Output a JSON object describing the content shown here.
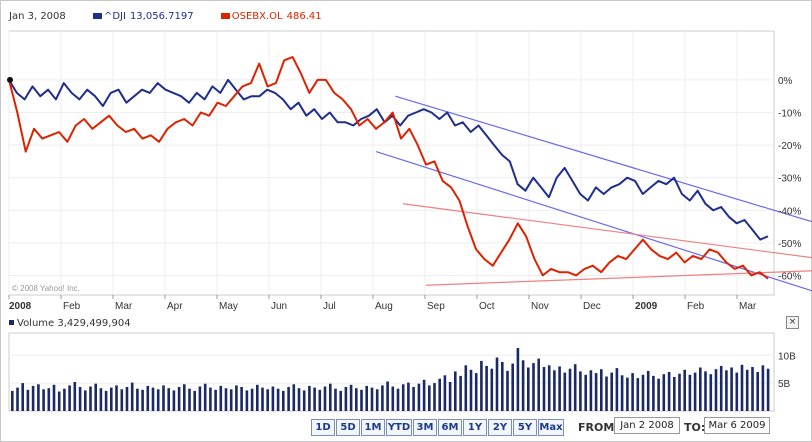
{
  "legend": {
    "date": "Jan 3, 2008",
    "series1_name": "^DJI",
    "series1_value": "13,056.7197",
    "series2_name": "OSEBX.OL",
    "series2_value": "486.41",
    "series1_color": "#1f2e8c",
    "series2_color": "#dd2200"
  },
  "copyright": "© 2008 Yahoo! Inc.",
  "volume": {
    "label": "Volume",
    "value": "3,429,499,904",
    "collapse": "×",
    "color": "#1a2a66"
  },
  "trendline_colors": {
    "blue": "#6a6af0",
    "red": "#f08080"
  },
  "chart_data": [
    {
      "type": "line",
      "x_ticks": [
        "2008",
        "Feb",
        "Mar",
        "Apr",
        "May",
        "Jun",
        "Jul",
        "Aug",
        "Sep",
        "Oct",
        "Nov",
        "Dec",
        "2009",
        "Feb",
        "Mar"
      ],
      "y_ticks": [
        "0%",
        "-10%",
        "-20%",
        "-30%",
        "-40%",
        "-50%",
        "-60%"
      ],
      "ylim": [
        -66,
        15
      ],
      "series": [
        {
          "name": "^DJI",
          "values": [
            0,
            -4,
            -6,
            -2,
            -5,
            -3,
            -6,
            -1,
            -4,
            -6,
            -3,
            -5,
            -8,
            -4,
            -3,
            -7,
            -5,
            -3,
            -4,
            -1,
            -3,
            -4,
            -5,
            -7,
            -4,
            -6,
            -2,
            -4,
            0,
            -3,
            -6,
            -5,
            -5,
            -3,
            -4,
            -6,
            -9,
            -7,
            -11,
            -9,
            -12,
            -10,
            -13,
            -13,
            -14,
            -12,
            -11,
            -9,
            -13,
            -11,
            -14,
            -11,
            -10,
            -9,
            -10,
            -12,
            -10,
            -14,
            -13,
            -16,
            -14,
            -17,
            -20,
            -23,
            -25,
            -32,
            -34,
            -30,
            -33,
            -36,
            -30,
            -27,
            -31,
            -35,
            -37,
            -33,
            -35,
            -33,
            -32,
            -30,
            -31,
            -35,
            -33,
            -31,
            -32,
            -30,
            -35,
            -37,
            -34,
            -38,
            -40,
            -39,
            -42,
            -44,
            -43,
            -46,
            -49,
            -48
          ],
          "color": "#1f2e8c"
        },
        {
          "name": "OSEBX.OL",
          "values": [
            0,
            -10,
            -22,
            -15,
            -18,
            -17,
            -16,
            -19,
            -14,
            -12,
            -15,
            -13,
            -11,
            -14,
            -16,
            -15,
            -18,
            -17,
            -19,
            -15,
            -13,
            -12,
            -14,
            -10,
            -11,
            -7,
            -8,
            -5,
            -2,
            -1,
            5,
            -2,
            -1,
            6,
            7,
            2,
            -4,
            0,
            0,
            -4,
            -6,
            -9,
            -14,
            -12,
            -15,
            -13,
            -10,
            -18,
            -15,
            -20,
            -26,
            -25,
            -31,
            -33,
            -37,
            -45,
            -52,
            -55,
            -57,
            -53,
            -49,
            -44,
            -48,
            -55,
            -60,
            -58,
            -59,
            -59,
            -60,
            -58,
            -57,
            -59,
            -56,
            -54,
            -55,
            -52,
            -49,
            -52,
            -54,
            -55,
            -53,
            -56,
            -54,
            -55,
            -52,
            -53,
            -56,
            -58,
            -57,
            -60,
            -59,
            -61
          ],
          "color": "#dd2200"
        }
      ],
      "trendlines": [
        {
          "color": "blue",
          "from": [
            0.505,
            -5
          ],
          "to": [
            1.0,
            -40
          ]
        },
        {
          "color": "blue",
          "from": [
            0.48,
            -22
          ],
          "to": [
            1.0,
            -61
          ]
        },
        {
          "color": "red",
          "from": [
            0.515,
            -38
          ],
          "to": [
            1.0,
            -53
          ]
        },
        {
          "color": "red",
          "from": [
            0.545,
            -63
          ],
          "to": [
            1.0,
            -59
          ]
        }
      ]
    },
    {
      "type": "bar",
      "name": "Volume",
      "y_ticks": [
        "10B",
        "5B"
      ],
      "ylim": [
        0,
        14
      ],
      "values": [
        3.6,
        4.2,
        5.0,
        3.8,
        4.5,
        4.8,
        3.9,
        4.1,
        4.7,
        3.5,
        4.0,
        4.6,
        5.2,
        4.3,
        3.7,
        4.4,
        4.9,
        4.1,
        3.6,
        4.2,
        4.6,
        3.9,
        4.3,
        5.1,
        4.0,
        3.8,
        4.5,
        4.2,
        3.9,
        4.6,
        4.1,
        3.7,
        4.3,
        4.8,
        4.0,
        3.6,
        4.4,
        4.9,
        4.2,
        3.8,
        4.5,
        4.1,
        3.9,
        4.6,
        4.3,
        3.7,
        4.0,
        4.7,
        4.2,
        3.9,
        4.4,
        4.0,
        3.6,
        4.3,
        4.8,
        4.1,
        3.7,
        4.5,
        4.2,
        3.8,
        4.4,
        4.9,
        4.0,
        3.6,
        4.3,
        4.7,
        4.1,
        3.8,
        4.5,
        4.2,
        3.9,
        4.6,
        5.3,
        4.4,
        4.0,
        4.8,
        5.1,
        4.3,
        4.9,
        5.6,
        4.6,
        5.0,
        5.8,
        6.4,
        5.2,
        7.1,
        6.3,
        8.2,
        7.4,
        6.8,
        9.0,
        8.1,
        7.6,
        9.6,
        8.8,
        7.2,
        8.5,
        11.3,
        9.1,
        7.8,
        8.6,
        9.4,
        7.9,
        8.2,
        7.3,
        8.0,
        6.9,
        7.6,
        8.4,
        7.1,
        6.5,
        7.3,
        6.8,
        7.5,
        6.2,
        6.9,
        7.7,
        6.4,
        6.0,
        6.8,
        5.9,
        6.5,
        7.2,
        6.3,
        5.8,
        6.6,
        7.0,
        6.1,
        6.7,
        7.4,
        6.5,
        6.9,
        7.8,
        7.1,
        6.6,
        7.5,
        8.1,
        7.3,
        7.8,
        6.9,
        8.3,
        7.4,
        7.9,
        7.0,
        8.2,
        7.6
      ]
    }
  ],
  "controls": {
    "ranges": [
      "1D",
      "5D",
      "1M",
      "YTD",
      "3M",
      "6M",
      "1Y",
      "2Y",
      "5Y",
      "Max"
    ],
    "from_label": "FROM:",
    "from_value": "Jan 2 2008",
    "to_label": "TO:",
    "to_value": "Mar 6 2009"
  }
}
